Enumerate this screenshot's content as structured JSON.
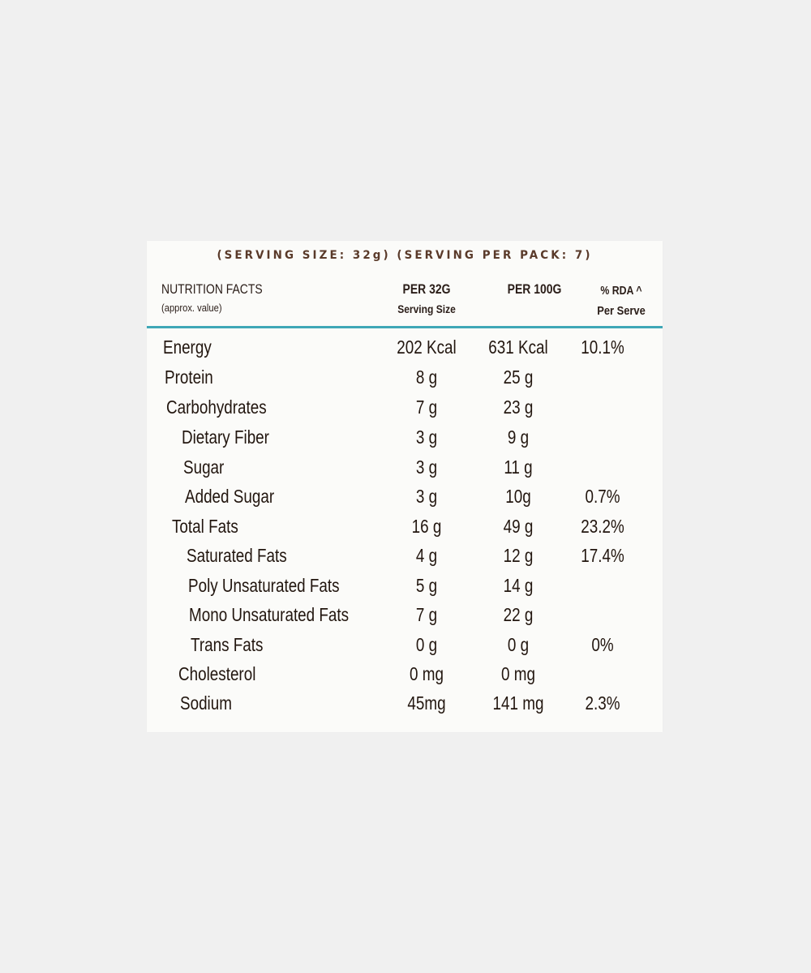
{
  "serving_line": "(SERVING SIZE: 32g) (SERVING PER PACK: 7)",
  "header": {
    "nutrition_facts": "NUTRITION FACTS",
    "approx": "(approx. value)",
    "per32": "PER 32G",
    "serving_size": "Serving Size",
    "per100": "PER 100G",
    "rda": "% RDA ^",
    "per_serve": "Per Serve"
  },
  "accent_color": "#3fa7b7",
  "rows": [
    {
      "name": "Energy",
      "per32": "202 Kcal",
      "per100": "631 Kcal",
      "rda": "10.1%"
    },
    {
      "name": "Protein",
      "per32": "8 g",
      "per100": "25 g",
      "rda": ""
    },
    {
      "name": "Carbohydrates",
      "per32": "7 g",
      "per100": "23 g",
      "rda": ""
    },
    {
      "name": "Dietary Fiber",
      "per32": "3 g",
      "per100": "9 g",
      "rda": ""
    },
    {
      "name": "Sugar",
      "per32": "3 g",
      "per100": "11 g",
      "rda": ""
    },
    {
      "name": "Added Sugar",
      "per32": "3 g",
      "per100": "10g",
      "rda": "0.7%"
    },
    {
      "name": "Total Fats",
      "per32": "16 g",
      "per100": "49 g",
      "rda": "23.2%"
    },
    {
      "name": "Saturated Fats",
      "per32": "4 g",
      "per100": "12 g",
      "rda": "17.4%"
    },
    {
      "name": "Poly Unsaturated Fats",
      "per32": "5 g",
      "per100": "14 g",
      "rda": ""
    },
    {
      "name": "Mono Unsaturated Fats",
      "per32": "7 g",
      "per100": "22 g",
      "rda": ""
    },
    {
      "name": "Trans Fats",
      "per32": "0 g",
      "per100": "0 g",
      "rda": "0%"
    },
    {
      "name": "Cholesterol",
      "per32": "0 mg",
      "per100": "0 mg",
      "rda": ""
    },
    {
      "name": "Sodium",
      "per32": "45mg",
      "per100": "141 mg",
      "rda": "2.3%"
    }
  ]
}
